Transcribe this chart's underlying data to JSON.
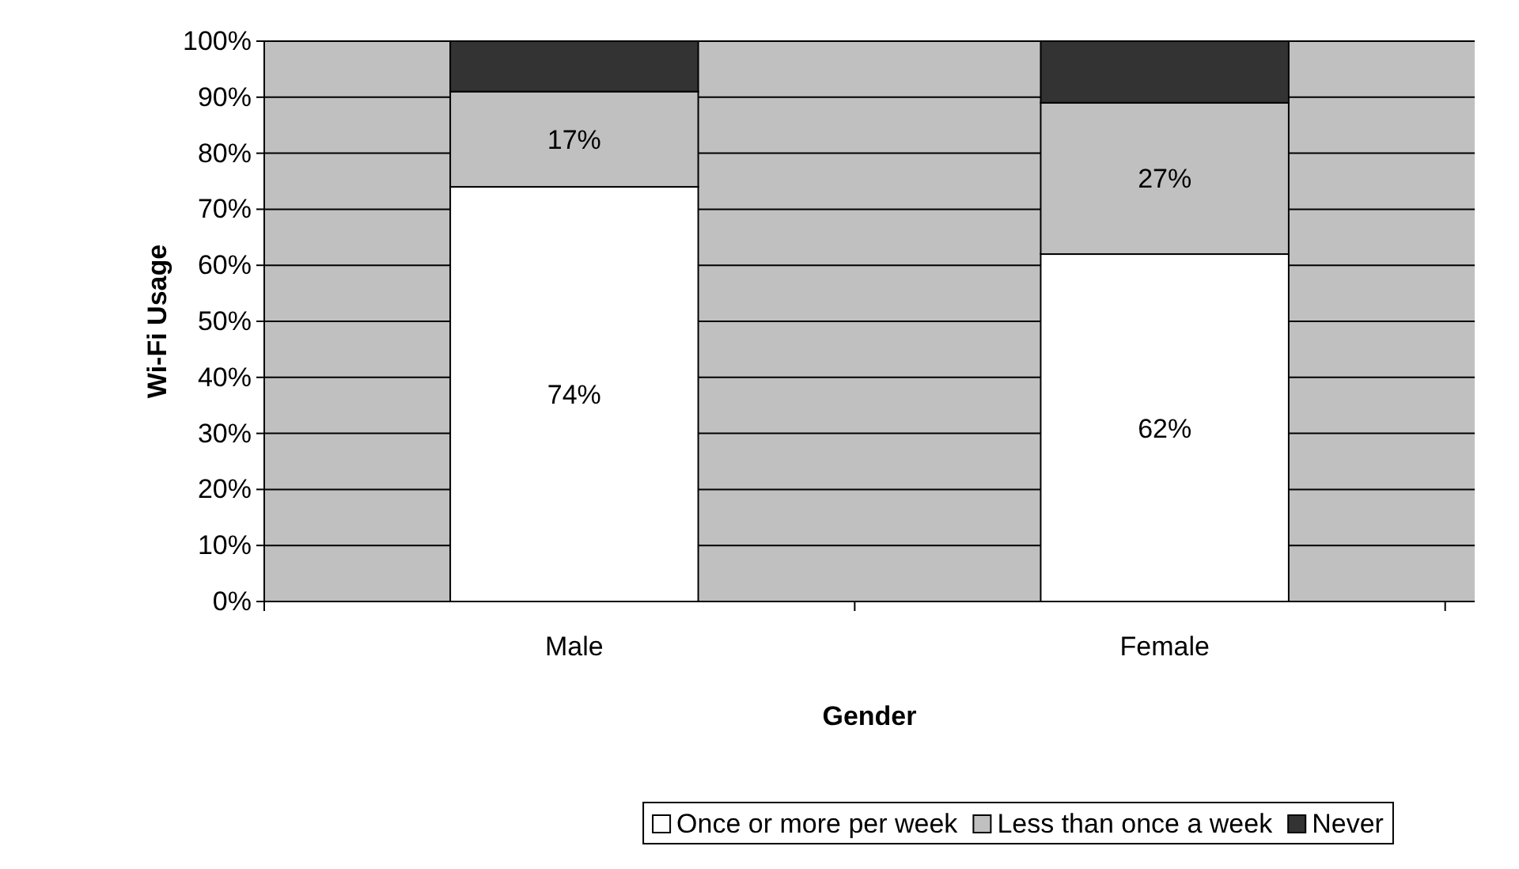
{
  "chart_data": {
    "type": "bar",
    "stacked": true,
    "xlabel": "Gender",
    "ylabel": "Wi-Fi Usage",
    "categories": [
      "Male",
      "Female"
    ],
    "series": [
      {
        "name": "Once or more per week",
        "color": "#ffffff",
        "values": [
          74,
          62
        ],
        "value_labels": [
          "74%",
          "62%"
        ]
      },
      {
        "name": "Less than once a week",
        "color": "#c0c0c0",
        "values": [
          17,
          27
        ],
        "value_labels": [
          "17%",
          "27%"
        ]
      },
      {
        "name": "Never",
        "color": "#333333",
        "values": [
          9,
          11
        ],
        "value_labels": [
          null,
          null
        ]
      }
    ],
    "ylim": [
      0,
      100
    ],
    "yticks": [
      {
        "value": 0,
        "label": "0%"
      },
      {
        "value": 10,
        "label": "10%"
      },
      {
        "value": 20,
        "label": "20%"
      },
      {
        "value": 30,
        "label": "30%"
      },
      {
        "value": 40,
        "label": "40%"
      },
      {
        "value": 50,
        "label": "50%"
      },
      {
        "value": 60,
        "label": "60%"
      },
      {
        "value": 70,
        "label": "70%"
      },
      {
        "value": 80,
        "label": "80%"
      },
      {
        "value": 90,
        "label": "90%"
      },
      {
        "value": 100,
        "label": "100%"
      }
    ],
    "grid": "y",
    "legend": "bottom"
  }
}
